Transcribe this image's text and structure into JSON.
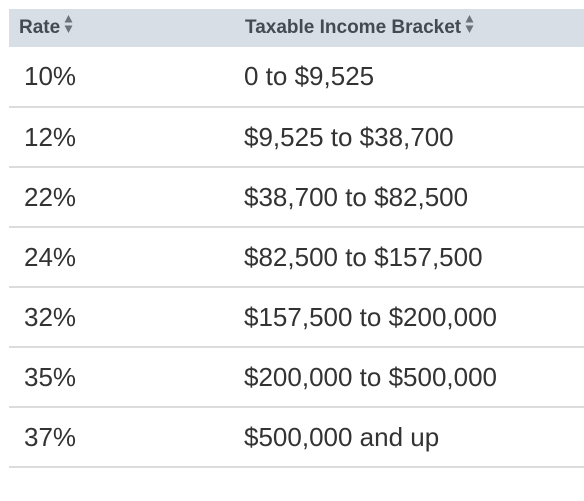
{
  "table": {
    "headers": [
      {
        "label": "Rate",
        "sort_icon": "sort-icon"
      },
      {
        "label": "Taxable Income Bracket",
        "sort_icon": "sort-icon"
      }
    ],
    "rows": [
      {
        "rate": "10%",
        "bracket": "0 to $9,525"
      },
      {
        "rate": "12%",
        "bracket": "$9,525 to $38,700"
      },
      {
        "rate": "22%",
        "bracket": "$38,700 to $82,500"
      },
      {
        "rate": "24%",
        "bracket": "$82,500 to $157,500"
      },
      {
        "rate": "32%",
        "bracket": "$157,500 to $200,000"
      },
      {
        "rate": "35%",
        "bracket": "$200,000 to $500,000"
      },
      {
        "rate": "37%",
        "bracket": "$500,000 and up"
      }
    ]
  },
  "colors": {
    "header_bg": "#d7dee6",
    "header_text": "#434a52",
    "cell_text": "#333333",
    "row_border": "#dcdcdc",
    "sort_icon": "#6b737b"
  }
}
